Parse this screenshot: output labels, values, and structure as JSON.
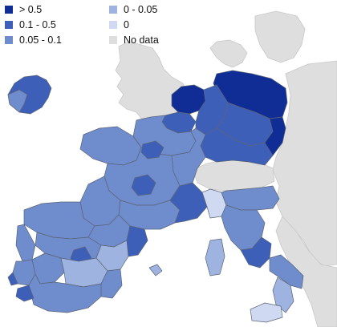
{
  "legend": {
    "items": [
      {
        "label": "> 0.5",
        "color": "#0f2d94"
      },
      {
        "label": "0.1 - 0.5",
        "color": "#3e5fb8"
      },
      {
        "label": "0.05 - 0.1",
        "color": "#6f8ccc"
      },
      {
        "label": "0 - 0.05",
        "color": "#9fb3e0"
      },
      {
        "label": "0",
        "color": "#cfdaf2"
      },
      {
        "label": "No data",
        "color": "#dedede"
      }
    ]
  },
  "map": {
    "no_data_color": "#dedede",
    "region_border_color": "#5a6478",
    "background_color": "#ffffff"
  }
}
